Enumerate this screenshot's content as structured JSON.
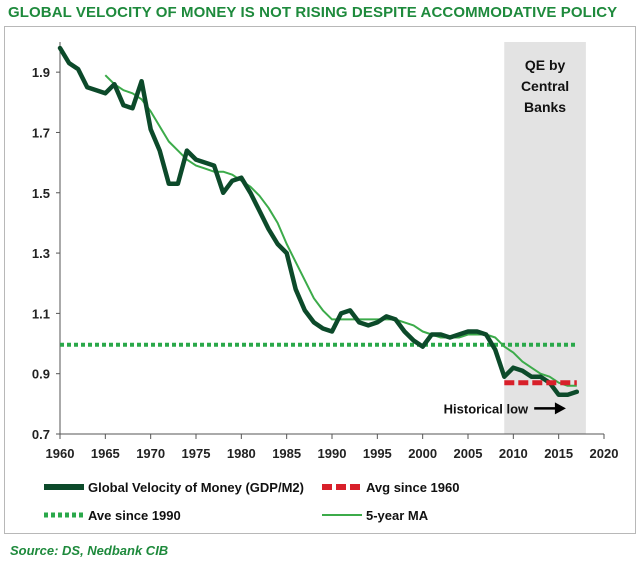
{
  "title": "GLOBAL VELOCITY OF MONEY IS NOT RISING DESPITE ACCOMMODATIVE POLICY",
  "source": "Source: DS, Nedbank CIB",
  "colors": {
    "title": "#1e8a3c",
    "velocity": "#0c4a2a",
    "ma": "#3cab4a",
    "avg1960": "#d8202a",
    "avg1990": "#2aa84a",
    "qe_band": "#e3e3e3",
    "arrow": "#000000"
  },
  "chart_data": {
    "type": "line",
    "xlim": [
      1960,
      2020
    ],
    "ylim": [
      0.7,
      2.0
    ],
    "x_ticks": [
      1960,
      1965,
      1970,
      1975,
      1980,
      1985,
      1990,
      1995,
      2000,
      2005,
      2010,
      2015,
      2020
    ],
    "y_ticks": [
      0.7,
      0.9,
      1.1,
      1.3,
      1.5,
      1.7,
      1.9
    ],
    "y_tick_labels": [
      "0.7",
      "0.9",
      "1.1",
      "1.3",
      "1.5",
      "1.7",
      "1.9"
    ],
    "series": [
      {
        "name": "Global Velocity of Money (GDP/M2)",
        "x": [
          1960,
          1961,
          1962,
          1963,
          1964,
          1965,
          1966,
          1967,
          1968,
          1969,
          1970,
          1971,
          1972,
          1973,
          1974,
          1975,
          1976,
          1977,
          1978,
          1979,
          1980,
          1981,
          1982,
          1983,
          1984,
          1985,
          1986,
          1987,
          1988,
          1989,
          1990,
          1991,
          1992,
          1993,
          1994,
          1995,
          1996,
          1997,
          1998,
          1999,
          2000,
          2001,
          2002,
          2003,
          2004,
          2005,
          2006,
          2007,
          2008,
          2009,
          2010,
          2011,
          2012,
          2013,
          2014,
          2015,
          2016,
          2017
        ],
        "values": [
          1.98,
          1.93,
          1.91,
          1.85,
          1.84,
          1.83,
          1.86,
          1.79,
          1.78,
          1.87,
          1.71,
          1.64,
          1.53,
          1.53,
          1.64,
          1.61,
          1.6,
          1.59,
          1.5,
          1.54,
          1.55,
          1.5,
          1.44,
          1.38,
          1.33,
          1.3,
          1.18,
          1.11,
          1.07,
          1.05,
          1.04,
          1.1,
          1.11,
          1.07,
          1.06,
          1.07,
          1.09,
          1.08,
          1.04,
          1.01,
          0.99,
          1.03,
          1.03,
          1.02,
          1.03,
          1.04,
          1.04,
          1.03,
          0.98,
          0.89,
          0.92,
          0.91,
          0.89,
          0.89,
          0.87,
          0.83,
          0.83,
          0.84
        ]
      },
      {
        "name": "5-year MA",
        "x": [
          1965,
          1966,
          1967,
          1968,
          1969,
          1970,
          1971,
          1972,
          1973,
          1974,
          1975,
          1976,
          1977,
          1978,
          1979,
          1980,
          1981,
          1982,
          1983,
          1984,
          1985,
          1986,
          1987,
          1988,
          1989,
          1990,
          1991,
          1992,
          1993,
          1994,
          1995,
          1996,
          1997,
          1998,
          1999,
          2000,
          2001,
          2002,
          2003,
          2004,
          2005,
          2006,
          2007,
          2008,
          2009,
          2010,
          2011,
          2012,
          2013,
          2014,
          2015,
          2016,
          2017
        ],
        "values": [
          1.89,
          1.86,
          1.84,
          1.83,
          1.81,
          1.77,
          1.72,
          1.67,
          1.64,
          1.61,
          1.59,
          1.58,
          1.57,
          1.57,
          1.56,
          1.54,
          1.52,
          1.49,
          1.45,
          1.4,
          1.33,
          1.27,
          1.21,
          1.15,
          1.11,
          1.08,
          1.08,
          1.08,
          1.08,
          1.08,
          1.08,
          1.08,
          1.08,
          1.07,
          1.06,
          1.04,
          1.03,
          1.02,
          1.02,
          1.02,
          1.03,
          1.03,
          1.03,
          1.02,
          0.99,
          0.97,
          0.94,
          0.92,
          0.9,
          0.89,
          0.87,
          0.86,
          0.86
        ]
      },
      {
        "name": "Avg since 1960",
        "x": [
          2009,
          2017
        ],
        "values": [
          0.87,
          0.87
        ]
      },
      {
        "name": "Ave since 1990",
        "x": [
          1960,
          2017
        ],
        "values": [
          0.996,
          0.996
        ]
      }
    ],
    "shaded_region": {
      "label": "QE by Central Banks",
      "label_lines": [
        "QE by",
        "Central",
        "Banks"
      ],
      "x": [
        2009,
        2018
      ]
    },
    "annotations": [
      {
        "text": "Historical low",
        "arrow_from": [
          2012.3,
          0.785
        ],
        "arrow_to": [
          2015.8,
          0.785
        ]
      }
    ],
    "legend": {
      "position": "bottom",
      "entries": [
        {
          "label": "Global Velocity of Money (GDP/M2)",
          "style": "thick-dark"
        },
        {
          "label": "Avg since 1960",
          "style": "dashed-red"
        },
        {
          "label": "Ave since 1990",
          "style": "dotted-green"
        },
        {
          "label": "5-year MA",
          "style": "thin-green"
        }
      ]
    },
    "grid": false
  }
}
